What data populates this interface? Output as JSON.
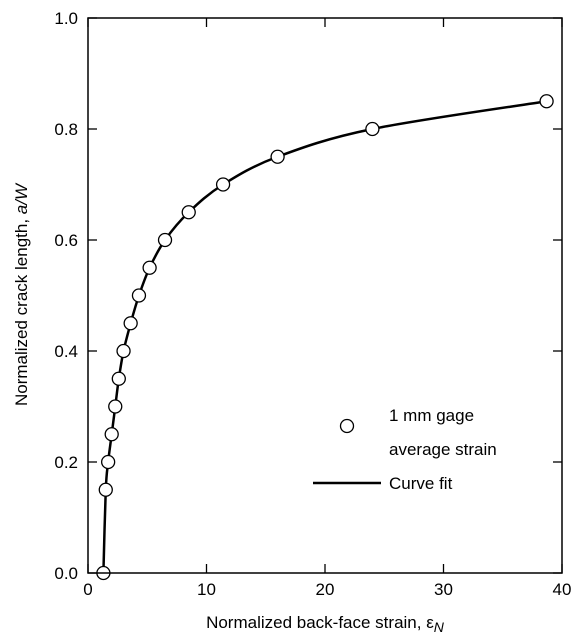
{
  "chart_data": {
    "type": "scatter",
    "xlabel": {
      "text": "Normalized back-face strain, ",
      "symbol": "ε",
      "subscript": "N"
    },
    "ylabel": {
      "text": "Normalized crack length, ",
      "italic": "a/W"
    },
    "xlim": [
      0,
      40
    ],
    "ylim": [
      0,
      1.0
    ],
    "xticks": [
      0,
      10,
      20,
      30,
      40
    ],
    "yticks": [
      0.0,
      0.2,
      0.4,
      0.6,
      0.8,
      1.0
    ],
    "xtick_labels": [
      "0",
      "10",
      "20",
      "30",
      "40"
    ],
    "ytick_labels": [
      "0.0",
      "0.2",
      "0.4",
      "0.6",
      "0.8",
      "1.0"
    ],
    "grid": false,
    "legend_position": "lower-right",
    "series": [
      {
        "name": "1 mm gage average strain",
        "legend_lines": [
          "1 mm gage",
          "average strain"
        ],
        "type": "scatter",
        "marker": "open-circle",
        "x": [
          1.3,
          1.5,
          1.7,
          2.0,
          2.3,
          2.6,
          3.0,
          3.6,
          4.3,
          5.2,
          6.5,
          8.5,
          11.4,
          16.0,
          24.0,
          38.7
        ],
        "y": [
          0.0,
          0.15,
          0.2,
          0.25,
          0.3,
          0.35,
          0.4,
          0.45,
          0.5,
          0.55,
          0.6,
          0.65,
          0.7,
          0.75,
          0.8,
          0.85
        ]
      },
      {
        "name": "Curve fit",
        "legend_lines": [
          "Curve fit"
        ],
        "type": "line",
        "color": "#000000",
        "x": [
          1.3,
          1.5,
          1.7,
          2.0,
          2.3,
          2.6,
          3.0,
          3.6,
          4.3,
          5.2,
          6.5,
          8.5,
          11.4,
          16.0,
          24.0,
          38.7
        ],
        "y": [
          0.0,
          0.15,
          0.2,
          0.25,
          0.3,
          0.35,
          0.4,
          0.45,
          0.5,
          0.55,
          0.6,
          0.65,
          0.7,
          0.75,
          0.8,
          0.85
        ]
      }
    ]
  }
}
